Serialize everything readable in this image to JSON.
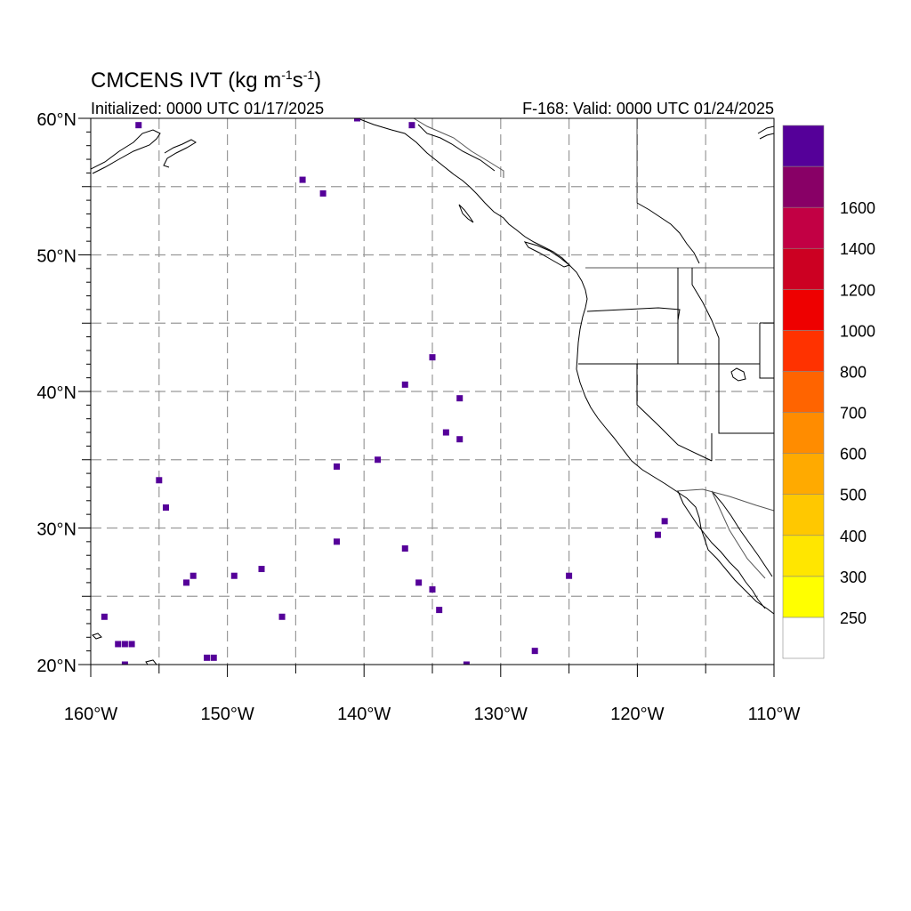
{
  "title": {
    "main": "CMCENS IVT (kg m",
    "sup1": "-1",
    "mid": "s",
    "sup2": "-1",
    "end": ")"
  },
  "subtitle_left": "Initialized: 0000 UTC 01/17/2025",
  "subtitle_right": "F-168: Valid: 0000 UTC 01/24/2025",
  "map": {
    "lon_range": [
      -160,
      -110
    ],
    "lat_range": [
      20,
      60
    ],
    "grid": "dashed every 5 degrees",
    "lat_ticks": [
      {
        "lat": 60,
        "label": "60°N"
      },
      {
        "lat": 50,
        "label": "50°N"
      },
      {
        "lat": 40,
        "label": "40°N"
      },
      {
        "lat": 30,
        "label": "30°N"
      },
      {
        "lat": 20,
        "label": "20°N"
      }
    ],
    "lon_ticks": [
      {
        "lon": -160,
        "label": "160°W"
      },
      {
        "lon": -150,
        "label": "150°W"
      },
      {
        "lon": -140,
        "label": "140°W"
      },
      {
        "lon": -130,
        "label": "130°W"
      },
      {
        "lon": -120,
        "label": "120°W"
      },
      {
        "lon": -110,
        "label": "110°W"
      }
    ]
  },
  "colorbar": {
    "colors": [
      "#ffffff",
      "#ffff00",
      "#ffe600",
      "#ffc800",
      "#ffaa00",
      "#ff8c00",
      "#ff6400",
      "#ff3200",
      "#ee0000",
      "#cc0022",
      "#c20044",
      "#880066",
      "#550099"
    ],
    "labels": [
      "250",
      "300",
      "400",
      "500",
      "600",
      "700",
      "800",
      "1000",
      "1200",
      "1400",
      "1600"
    ]
  },
  "chart_data": {
    "type": "scatter",
    "title": "CMCENS IVT (kg m-1s-1)",
    "value_class": "1600+",
    "x": [
      -156.5,
      -140.5,
      -136.5,
      -144.5,
      -143,
      -135,
      -137,
      -133,
      -134,
      -133,
      -139,
      -142,
      -155,
      -154.5,
      -142,
      -137,
      -147.5,
      -149.5,
      -152.5,
      -153,
      -136,
      -135,
      -134.5,
      -146,
      -159,
      -158,
      -157.5,
      -157,
      -157.5,
      -151.5,
      -151,
      -132.5,
      -127.5,
      -125,
      -118.5,
      -118
    ],
    "y": [
      59.5,
      60,
      59.5,
      55.5,
      54.5,
      42.5,
      40.5,
      39.5,
      37,
      36.5,
      35,
      34.5,
      33.5,
      31.5,
      29,
      28.5,
      27,
      26.5,
      26.5,
      26,
      26,
      25.5,
      24,
      23.5,
      23.5,
      21.5,
      21.5,
      21.5,
      20,
      20.5,
      20.5,
      20,
      21,
      26.5,
      29.5,
      30.5
    ]
  }
}
